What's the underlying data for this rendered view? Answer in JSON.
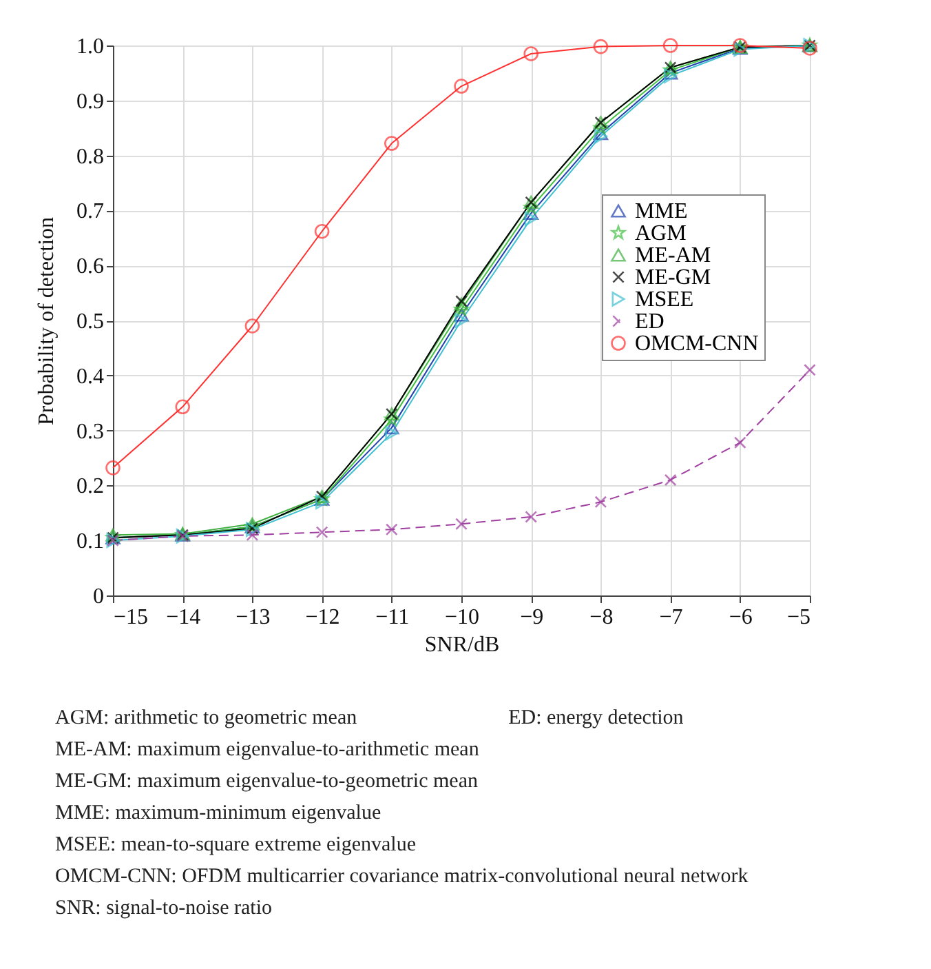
{
  "chart_data": {
    "type": "line",
    "xlabel": "SNR/dB",
    "ylabel": "Probability of detection",
    "x": [
      -15,
      -14,
      -13,
      -12,
      -11,
      -10,
      -9,
      -8,
      -7,
      -6,
      -5
    ],
    "xlim": [
      -15,
      -5
    ],
    "xticks": [
      -15,
      -14,
      -13,
      -12,
      -11,
      -10,
      -9,
      -8,
      -7,
      -6,
      -5
    ],
    "ylim": [
      0,
      1
    ],
    "yticks": [
      0,
      0.1,
      0.2,
      0.3,
      0.4,
      0.5,
      0.6,
      0.7,
      0.8,
      0.9,
      {
        "value": 1,
        "label": "1.0"
      }
    ],
    "grid": true,
    "legend": "right",
    "series": [
      {
        "name": "MME",
        "color": "#2040b0",
        "marker": "triangle",
        "line_style": "solid",
        "values": [
          0.105,
          0.11,
          0.125,
          0.175,
          0.305,
          0.51,
          0.695,
          0.84,
          0.95,
          0.995,
          1.0
        ]
      },
      {
        "name": "AGM",
        "color": "#40c040",
        "marker": "star",
        "line_style": "solid",
        "values": [
          0.105,
          0.11,
          0.125,
          0.175,
          0.32,
          0.52,
          0.705,
          0.85,
          0.955,
          0.997,
          1.0
        ]
      },
      {
        "name": "ME-AM",
        "color": "#40b040",
        "marker": "triangle",
        "line_style": "solid",
        "values": [
          0.11,
          0.112,
          0.13,
          0.18,
          0.33,
          0.53,
          0.715,
          0.86,
          0.96,
          0.997,
          1.0
        ]
      },
      {
        "name": "ME-GM",
        "color": "#000000",
        "marker": "cross",
        "line_style": "solid",
        "values": [
          0.105,
          0.11,
          0.122,
          0.18,
          0.33,
          0.535,
          0.715,
          0.86,
          0.96,
          0.997,
          1.0
        ]
      },
      {
        "name": "MSEE",
        "color": "#40c0d0",
        "marker": "triangle-right",
        "line_style": "solid",
        "values": [
          0.1,
          0.108,
          0.12,
          0.17,
          0.295,
          0.5,
          0.685,
          0.835,
          0.945,
          0.993,
          1.0
        ]
      },
      {
        "name": "ED",
        "color": "#a040a0",
        "marker": "cross",
        "line_style": "dashed",
        "values": [
          0.1,
          0.108,
          0.11,
          0.115,
          0.12,
          0.13,
          0.143,
          0.17,
          0.21,
          0.278,
          0.41
        ]
      },
      {
        "name": "OMCM-CNN",
        "color": "#ff3030",
        "marker": "circle",
        "line_style": "solid",
        "values": [
          0.232,
          0.343,
          0.49,
          0.662,
          0.822,
          0.926,
          0.985,
          0.998,
          1.0,
          1.0,
          0.995
        ]
      }
    ],
    "annotations": [
      "AGM: arithmetic to geometric mean",
      "ED: energy detection",
      "ME-AM: maximum eigenvalue-to-arithmetic mean",
      "ME-GM: maximum eigenvalue-to-geometric mean",
      "MME: maximum-minimum eigenvalue",
      "MSEE: mean-to-square extreme eigenvalue",
      "OMCM-CNN: OFDM multicarrier covariance matrix-convolutional neural network",
      "SNR: signal-to-noise ratio"
    ]
  }
}
